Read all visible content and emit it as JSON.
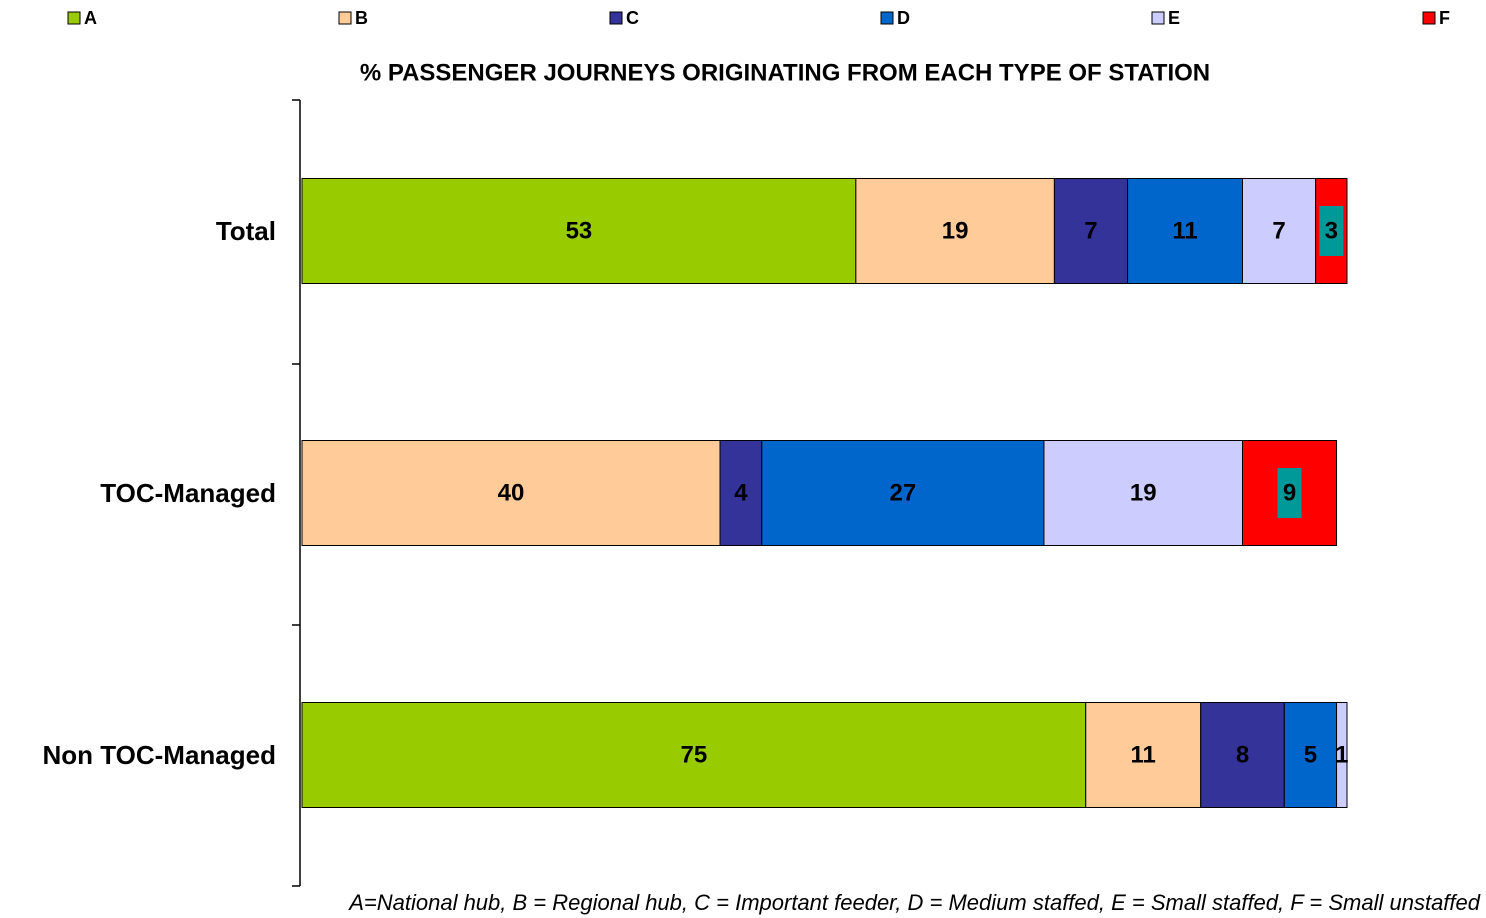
{
  "chart_data": {
    "type": "stacked_barh",
    "title": "% PASSENGER JOURNEYS ORIGINATING FROM EACH TYPE OF STATION",
    "note": "A=National hub, B = Regional hub, C = Important feeder, D = Medium staffed, E = Small staffed, F = Small unstaffed",
    "categories": [
      "Total",
      "TOC-Managed",
      "Non TOC-Managed"
    ],
    "xlim": [
      0,
      100
    ],
    "legend": "top",
    "series": [
      {
        "name": "A",
        "color": "#99cc00",
        "values": [
          53,
          null,
          75
        ]
      },
      {
        "name": "B",
        "color": "#ffcc99",
        "values": [
          19,
          40,
          11
        ]
      },
      {
        "name": "C",
        "color": "#333399",
        "values": [
          7,
          4,
          8
        ]
      },
      {
        "name": "D",
        "color": "#0066cc",
        "values": [
          11,
          27,
          5
        ]
      },
      {
        "name": "E",
        "color": "#ccccff",
        "values": [
          7,
          19,
          1
        ]
      },
      {
        "name": "F",
        "color": "#ff0000",
        "label_background": "#009999",
        "values": [
          3,
          9,
          null
        ]
      }
    ]
  }
}
